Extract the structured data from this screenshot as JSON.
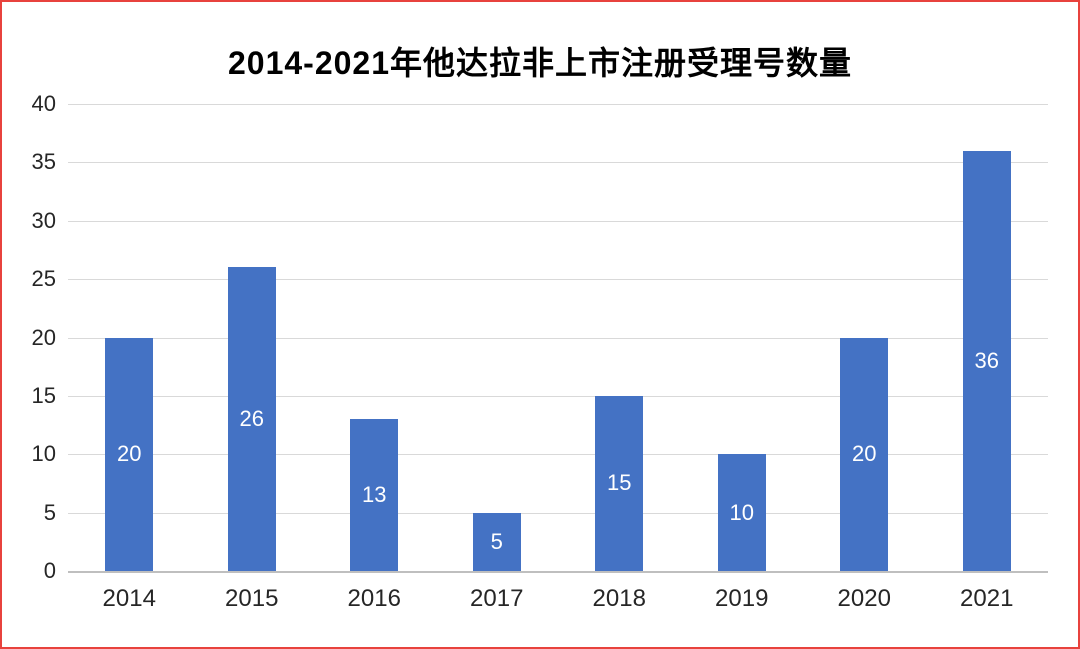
{
  "title": "2014-2021年他达拉非上市注册受理号数量",
  "colors": {
    "bar": "#4472c4",
    "gridline": "#d9d9d9",
    "axis": "#bfbfbf",
    "bar_label_text": "#ffffff",
    "tick_text": "#262626",
    "frame_border": "#e8423d"
  },
  "chart_data": {
    "type": "bar",
    "categories": [
      "2014",
      "2015",
      "2016",
      "2017",
      "2018",
      "2019",
      "2020",
      "2021"
    ],
    "values": [
      20,
      26,
      13,
      5,
      15,
      10,
      20,
      36
    ],
    "title": "2014-2021年他达拉非上市注册受理号数量",
    "xlabel": "",
    "ylabel": "",
    "ylim": [
      0,
      40
    ],
    "ytick_step": 5,
    "yticks": [
      0,
      5,
      10,
      15,
      20,
      25,
      30,
      35,
      40
    ],
    "grid": true,
    "data_label_position": "center",
    "legend": "none"
  }
}
